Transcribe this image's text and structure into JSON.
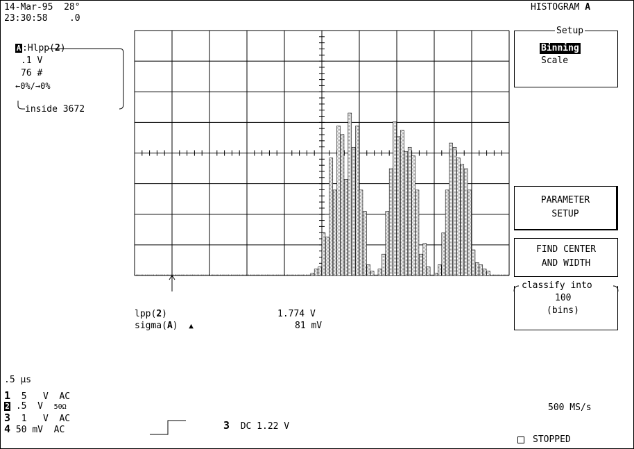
{
  "status": {
    "date": "14-Mar-95",
    "temp": "28°",
    "time": "23:30:58",
    "frac": ".0",
    "mode_title": "HISTOGRAM",
    "mode_trace": "A"
  },
  "trace_box": {
    "trace": "A",
    "func_prefix": ":Hlpp(",
    "func_ch": "2",
    "func_suffix": ")",
    "bin_width": ".1 V",
    "count": "76 #",
    "overflow": "←0%/→0%",
    "inside": "inside 3672"
  },
  "menu": {
    "setup_title": "Setup",
    "setup_options": [
      "Binning",
      "Scale"
    ],
    "setup_selected": "Binning",
    "param_setup": [
      "PARAMETER",
      "SETUP"
    ],
    "find_center": [
      "FIND CENTER",
      "AND WIDTH"
    ],
    "classify_title": "classify into",
    "classify_value": "100",
    "classify_unit": "(bins)"
  },
  "measurements": [
    {
      "label": "lpp(",
      "ch": "2",
      "end": ")",
      "icon": "",
      "value": "1.774 V"
    },
    {
      "label": "sigma(",
      "ch": "A",
      "end": ")",
      "icon": "▲",
      "value": "81 mV"
    }
  ],
  "timebase": ".5 µs",
  "channels": [
    {
      "num": "1",
      "scale": "5",
      "unit": "V",
      "coupling": "AC"
    },
    {
      "num": "2",
      "scale": ".5",
      "unit": "V",
      "coupling": "50Ω"
    },
    {
      "num": "3",
      "scale": "1",
      "unit": "V",
      "coupling": "AC"
    },
    {
      "num": "4",
      "scale": "50",
      "unit": "mV",
      "coupling": "AC"
    }
  ],
  "trigger": {
    "channel": "3",
    "coupling": "DC 1.22 V"
  },
  "sample_rate": "500 MS/s",
  "acq_status": "STOPPED",
  "histogram": {
    "bins": 100,
    "counts": [
      0,
      0,
      0,
      0,
      0,
      0,
      0,
      0,
      0,
      0,
      0,
      0,
      0,
      0,
      0,
      0,
      0,
      0,
      0,
      0,
      0,
      0,
      0,
      0,
      0,
      0,
      0,
      0,
      0,
      0,
      0,
      0,
      0,
      0,
      0,
      0,
      0,
      0,
      0,
      0,
      0,
      0,
      0,
      0,
      0,
      0,
      0,
      1,
      3,
      4,
      20,
      18,
      55,
      40,
      70,
      66,
      45,
      76,
      60,
      70,
      40,
      30,
      5,
      2,
      0,
      3,
      10,
      30,
      50,
      72,
      65,
      68,
      58,
      60,
      56,
      40,
      10,
      15,
      4,
      0,
      1,
      5,
      20,
      40,
      62,
      60,
      55,
      52,
      50,
      40,
      12,
      6,
      5,
      3,
      2,
      0,
      0,
      0,
      0,
      0
    ],
    "max_count": 76
  }
}
